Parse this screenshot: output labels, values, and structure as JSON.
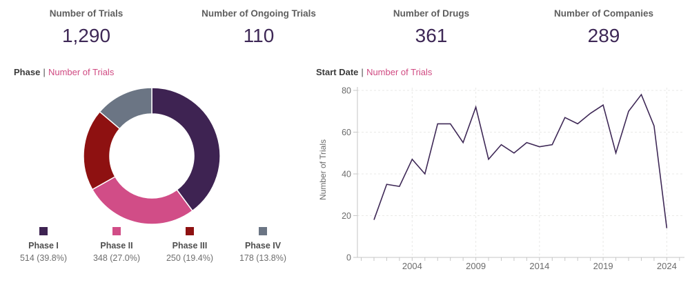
{
  "kpis": [
    {
      "label": "Number of Trials",
      "value": "1,290"
    },
    {
      "label": "Number of Ongoing Trials",
      "value": "110"
    },
    {
      "label": "Number of Drugs",
      "value": "361"
    },
    {
      "label": "Number of Companies",
      "value": "289"
    }
  ],
  "panels": {
    "phase": {
      "dimension": "Phase",
      "separator": "|",
      "measure": "Number of Trials"
    },
    "start_date": {
      "dimension": "Start Date",
      "separator": "|",
      "measure": "Number of Trials"
    }
  },
  "colors": {
    "kpi_value": "#3e2856",
    "kpi_label": "#5e5e5e",
    "title_dimension": "#3a3a3a",
    "title_measure": "#d04a82",
    "axis_text": "#6b6b6b",
    "axis_line": "#c6c6c6",
    "gridline": "#e9e9e7",
    "line_series": "#3e2856"
  },
  "chart_data": [
    {
      "type": "pie",
      "subtype": "donut",
      "title": "Phase | Number of Trials",
      "categories": [
        "Phase I",
        "Phase II",
        "Phase III",
        "Phase IV"
      ],
      "values": [
        514,
        348,
        250,
        178
      ],
      "percent_labels": [
        "39.8%",
        "27.0%",
        "19.4%",
        "13.8%"
      ],
      "legend_texts": [
        "514 (39.8%)",
        "348 (27.0%)",
        "250 (19.4%)",
        "178 (13.8%)"
      ],
      "colors": [
        "#3e2352",
        "#d14d87",
        "#8e1111",
        "#6b7584"
      ],
      "total": 1290,
      "inner_radius_ratio": 0.62,
      "start_angle_deg": 0,
      "direction": "clockwise",
      "legend_position": "bottom"
    },
    {
      "type": "line",
      "title": "Start Date | Number of Trials",
      "xlabel": "",
      "ylabel": "Number of Trials",
      "x": [
        2001,
        2002,
        2003,
        2004,
        2005,
        2006,
        2007,
        2008,
        2009,
        2010,
        2011,
        2012,
        2013,
        2014,
        2015,
        2016,
        2017,
        2018,
        2019,
        2020,
        2021,
        2022,
        2023,
        2024
      ],
      "values": [
        18,
        35,
        34,
        47,
        40,
        64,
        64,
        55,
        72,
        47,
        54,
        50,
        55,
        53,
        54,
        67,
        64,
        69,
        73,
        50,
        70,
        78,
        63,
        14
      ],
      "ylim": [
        0,
        80
      ],
      "yticks": [
        0,
        20,
        40,
        60,
        80
      ],
      "xticks": [
        2004,
        2009,
        2014,
        2019,
        2024
      ],
      "minor_xtick_step": 1,
      "grid": "dashed",
      "legend_position": "none",
      "line_color": "#3e2856"
    }
  ]
}
